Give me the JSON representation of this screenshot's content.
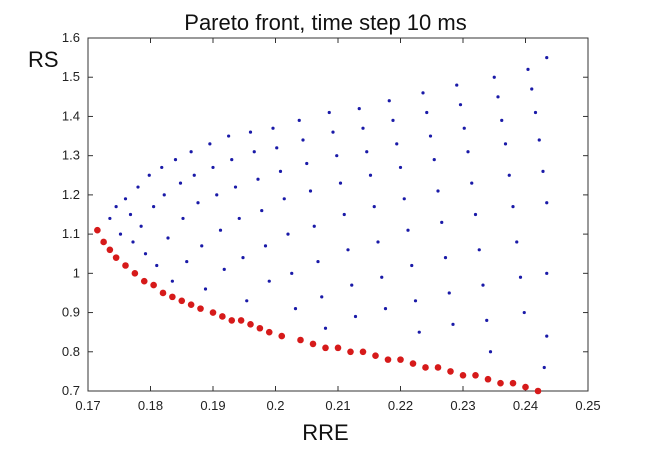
{
  "chart_data": {
    "type": "scatter",
    "title": "Pareto front, time step 10 ms",
    "xlabel": "RRE",
    "ylabel": "RS",
    "xlim": [
      0.17,
      0.25
    ],
    "ylim": [
      0.7,
      1.6
    ],
    "xticks": [
      "0.17",
      "0.18",
      "0.19",
      "0.2",
      "0.21",
      "0.22",
      "0.23",
      "0.24",
      "0.25"
    ],
    "yticks": [
      "0.7",
      "0.8",
      "0.9",
      "1",
      "1.1",
      "1.2",
      "1.3",
      "1.4",
      "1.5",
      "1.6"
    ],
    "grid": false,
    "series": [
      {
        "color": "#1a1aa8",
        "marker": "dot",
        "points": [
          [
            0.1735,
            1.14
          ],
          [
            0.1745,
            1.17
          ],
          [
            0.1752,
            1.1
          ],
          [
            0.176,
            1.19
          ],
          [
            0.1768,
            1.15
          ],
          [
            0.1772,
            1.08
          ],
          [
            0.178,
            1.22
          ],
          [
            0.1785,
            1.12
          ],
          [
            0.1792,
            1.05
          ],
          [
            0.1798,
            1.25
          ],
          [
            0.1805,
            1.17
          ],
          [
            0.181,
            1.02
          ],
          [
            0.1818,
            1.27
          ],
          [
            0.1822,
            1.2
          ],
          [
            0.1828,
            1.09
          ],
          [
            0.1835,
            0.98
          ],
          [
            0.184,
            1.29
          ],
          [
            0.1848,
            1.23
          ],
          [
            0.1852,
            1.14
          ],
          [
            0.1858,
            1.03
          ],
          [
            0.1865,
            1.31
          ],
          [
            0.187,
            1.25
          ],
          [
            0.1876,
            1.18
          ],
          [
            0.1882,
            1.07
          ],
          [
            0.1888,
            0.96
          ],
          [
            0.1895,
            1.33
          ],
          [
            0.19,
            1.27
          ],
          [
            0.1906,
            1.2
          ],
          [
            0.1912,
            1.11
          ],
          [
            0.1918,
            1.01
          ],
          [
            0.1925,
            1.35
          ],
          [
            0.193,
            1.29
          ],
          [
            0.1936,
            1.22
          ],
          [
            0.1942,
            1.14
          ],
          [
            0.1948,
            1.04
          ],
          [
            0.1954,
            0.93
          ],
          [
            0.196,
            1.36
          ],
          [
            0.1966,
            1.31
          ],
          [
            0.1972,
            1.24
          ],
          [
            0.1978,
            1.16
          ],
          [
            0.1984,
            1.07
          ],
          [
            0.199,
            0.98
          ],
          [
            0.1996,
            1.37
          ],
          [
            0.2002,
            1.32
          ],
          [
            0.2008,
            1.26
          ],
          [
            0.2014,
            1.19
          ],
          [
            0.202,
            1.1
          ],
          [
            0.2026,
            1.0
          ],
          [
            0.2032,
            0.91
          ],
          [
            0.2038,
            1.39
          ],
          [
            0.2044,
            1.34
          ],
          [
            0.205,
            1.28
          ],
          [
            0.2056,
            1.21
          ],
          [
            0.2062,
            1.12
          ],
          [
            0.2068,
            1.03
          ],
          [
            0.2074,
            0.94
          ],
          [
            0.208,
            0.86
          ],
          [
            0.2086,
            1.41
          ],
          [
            0.2092,
            1.36
          ],
          [
            0.2098,
            1.3
          ],
          [
            0.2104,
            1.23
          ],
          [
            0.211,
            1.15
          ],
          [
            0.2116,
            1.06
          ],
          [
            0.2122,
            0.97
          ],
          [
            0.2128,
            0.89
          ],
          [
            0.2134,
            1.42
          ],
          [
            0.214,
            1.37
          ],
          [
            0.2146,
            1.31
          ],
          [
            0.2152,
            1.25
          ],
          [
            0.2158,
            1.17
          ],
          [
            0.2164,
            1.08
          ],
          [
            0.217,
            0.99
          ],
          [
            0.2176,
            0.91
          ],
          [
            0.2182,
            1.44
          ],
          [
            0.2188,
            1.39
          ],
          [
            0.2194,
            1.33
          ],
          [
            0.22,
            1.27
          ],
          [
            0.2206,
            1.19
          ],
          [
            0.2212,
            1.11
          ],
          [
            0.2218,
            1.02
          ],
          [
            0.2224,
            0.93
          ],
          [
            0.223,
            0.85
          ],
          [
            0.2236,
            1.46
          ],
          [
            0.2242,
            1.41
          ],
          [
            0.2248,
            1.35
          ],
          [
            0.2254,
            1.29
          ],
          [
            0.226,
            1.21
          ],
          [
            0.2266,
            1.13
          ],
          [
            0.2272,
            1.04
          ],
          [
            0.2278,
            0.95
          ],
          [
            0.2284,
            0.87
          ],
          [
            0.229,
            1.48
          ],
          [
            0.2296,
            1.43
          ],
          [
            0.2302,
            1.37
          ],
          [
            0.2308,
            1.31
          ],
          [
            0.2314,
            1.23
          ],
          [
            0.232,
            1.15
          ],
          [
            0.2326,
            1.06
          ],
          [
            0.2332,
            0.97
          ],
          [
            0.2338,
            0.88
          ],
          [
            0.2344,
            0.8
          ],
          [
            0.235,
            1.5
          ],
          [
            0.2356,
            1.45
          ],
          [
            0.2362,
            1.39
          ],
          [
            0.2368,
            1.33
          ],
          [
            0.2374,
            1.25
          ],
          [
            0.238,
            1.17
          ],
          [
            0.2386,
            1.08
          ],
          [
            0.2392,
            0.99
          ],
          [
            0.2398,
            0.9
          ],
          [
            0.2404,
            1.52
          ],
          [
            0.241,
            1.47
          ],
          [
            0.2416,
            1.41
          ],
          [
            0.2422,
            1.34
          ],
          [
            0.2428,
            1.26
          ],
          [
            0.2434,
            1.55
          ],
          [
            0.2434,
            1.18
          ],
          [
            0.2434,
            1.0
          ],
          [
            0.2434,
            0.84
          ],
          [
            0.243,
            0.76
          ]
        ]
      },
      {
        "color": "#d61a1a",
        "marker": "filled-circle",
        "points": [
          [
            0.1715,
            1.11
          ],
          [
            0.1725,
            1.08
          ],
          [
            0.1735,
            1.06
          ],
          [
            0.1745,
            1.04
          ],
          [
            0.176,
            1.02
          ],
          [
            0.1775,
            1.0
          ],
          [
            0.179,
            0.98
          ],
          [
            0.1805,
            0.97
          ],
          [
            0.182,
            0.95
          ],
          [
            0.1835,
            0.94
          ],
          [
            0.185,
            0.93
          ],
          [
            0.1865,
            0.92
          ],
          [
            0.188,
            0.91
          ],
          [
            0.19,
            0.9
          ],
          [
            0.1915,
            0.89
          ],
          [
            0.193,
            0.88
          ],
          [
            0.1945,
            0.88
          ],
          [
            0.196,
            0.87
          ],
          [
            0.1975,
            0.86
          ],
          [
            0.199,
            0.85
          ],
          [
            0.201,
            0.84
          ],
          [
            0.204,
            0.83
          ],
          [
            0.206,
            0.82
          ],
          [
            0.208,
            0.81
          ],
          [
            0.21,
            0.81
          ],
          [
            0.212,
            0.8
          ],
          [
            0.214,
            0.8
          ],
          [
            0.216,
            0.79
          ],
          [
            0.218,
            0.78
          ],
          [
            0.22,
            0.78
          ],
          [
            0.222,
            0.77
          ],
          [
            0.224,
            0.76
          ],
          [
            0.226,
            0.76
          ],
          [
            0.228,
            0.75
          ],
          [
            0.23,
            0.74
          ],
          [
            0.232,
            0.74
          ],
          [
            0.234,
            0.73
          ],
          [
            0.236,
            0.72
          ],
          [
            0.238,
            0.72
          ],
          [
            0.24,
            0.71
          ],
          [
            0.242,
            0.7
          ]
        ]
      }
    ]
  }
}
